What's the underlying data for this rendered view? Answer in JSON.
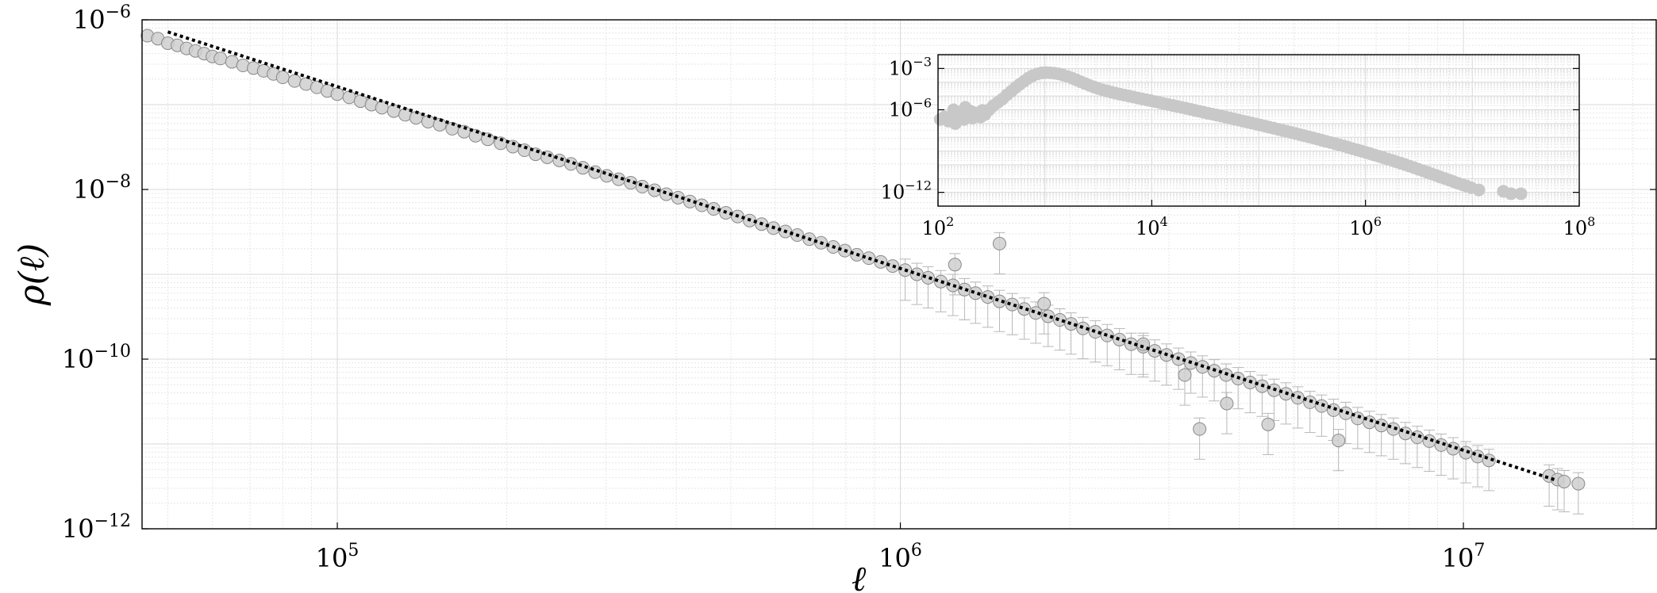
{
  "chart_data": [
    {
      "id": "main",
      "type": "scatter",
      "title": "",
      "xlabel": "ℓ",
      "ylabel": "ρ(ℓ)",
      "xscale": "log",
      "yscale": "log",
      "xlim": [
        45000,
        22000000
      ],
      "ylim": [
        1e-12,
        1e-06
      ],
      "grid": true,
      "x_ticks": [
        {
          "value": 100000.0,
          "base": "10",
          "exp": "5"
        },
        {
          "value": 1000000.0,
          "base": "10",
          "exp": "6"
        },
        {
          "value": 10000000.0,
          "base": "10",
          "exp": "7"
        }
      ],
      "y_ticks": [
        {
          "value": 1e-06,
          "base": "10",
          "exp": "−6"
        },
        {
          "value": 1e-08,
          "base": "10",
          "exp": "−8"
        },
        {
          "value": 1e-10,
          "base": "10",
          "exp": "−10"
        },
        {
          "value": 1e-12,
          "base": "10",
          "exp": "−12"
        }
      ],
      "series": [
        {
          "marker": "circle",
          "color": "#cfcfcf",
          "x": [
            46000,
            48000,
            50000,
            52000,
            54000,
            56000,
            58000,
            60000,
            62000,
            65000,
            68000,
            71000,
            74000,
            77000,
            80000,
            84000,
            88000,
            92000,
            96000,
            100000,
            105000,
            110000,
            115000,
            120000,
            126000,
            132000,
            138000,
            145000,
            152000,
            160000,
            168000,
            176000,
            185000,
            195000,
            205000,
            215000,
            225000,
            236000,
            248000,
            260000,
            273000,
            287000,
            301000,
            316000,
            332000,
            348000,
            366000,
            384000,
            403000,
            423000,
            444000,
            466000,
            490000,
            514000,
            540000,
            567000,
            595000,
            625000,
            656000,
            689000,
            723000,
            760000,
            797000,
            837000,
            879000,
            923000,
            969000,
            1020000,
            1070000,
            1120000,
            1180000,
            1240000,
            1300000,
            1360000,
            1430000,
            1500000,
            1580000,
            1660000,
            1740000,
            1830000,
            1920000,
            2010000,
            2110000,
            2220000,
            2330000,
            2450000,
            2570000,
            2700000,
            2830000,
            2970000,
            3120000,
            3280000,
            3440000,
            3610000,
            3790000,
            3980000,
            4180000,
            4390000,
            4610000,
            4840000,
            5080000,
            5340000,
            5600000,
            5880000,
            6180000,
            6490000,
            6810000,
            7150000,
            7510000,
            7890000,
            8280000,
            8700000,
            9130000,
            9590000,
            10100000,
            10600000,
            11100000,
            14200000,
            14700000,
            15100000,
            16000000,
            6000000,
            4500000,
            3800000,
            3200000,
            2700000,
            1800000,
            1500000,
            1250000,
            3400000
          ],
          "y": [
            6.5e-07,
            6e-07,
            5.3e-07,
            5e-07,
            4.6e-07,
            4.3e-07,
            4e-07,
            3.7e-07,
            3.5e-07,
            3.2e-07,
            2.9e-07,
            2.7e-07,
            2.5e-07,
            2.3e-07,
            2.1e-07,
            1.9e-07,
            1.75e-07,
            1.6e-07,
            1.45e-07,
            1.33e-07,
            1.22e-07,
            1.1e-07,
            1e-07,
            9.2e-08,
            8.4e-08,
            7.6e-08,
            7e-08,
            6.3e-08,
            5.8e-08,
            5.2e-08,
            4.8e-08,
            4.3e-08,
            3.9e-08,
            3.5e-08,
            3.2e-08,
            2.9e-08,
            2.6e-08,
            2.4e-08,
            2.2e-08,
            2e-08,
            1.8e-08,
            1.6e-08,
            1.45e-08,
            1.32e-08,
            1.2e-08,
            1.08e-08,
            9.8e-09,
            8.8e-09,
            8e-09,
            7.2e-09,
            6.5e-09,
            5.9e-09,
            5.3e-09,
            4.8e-09,
            4.3e-09,
            3.9e-09,
            3.5e-09,
            3.2e-09,
            2.9e-09,
            2.6e-09,
            2.35e-09,
            2.1e-09,
            1.9e-09,
            1.7e-09,
            1.55e-09,
            1.4e-09,
            1.25e-09,
            1.12e-09,
            1e-09,
            9.1e-10,
            8.2e-10,
            7.4e-10,
            6.6e-10,
            6e-10,
            5.4e-10,
            4.8e-10,
            4.4e-10,
            3.9e-10,
            3.5e-10,
            3.2e-10,
            2.9e-10,
            2.6e-10,
            2.3e-10,
            2.1e-10,
            1.9e-10,
            1.7e-10,
            1.5e-10,
            1.4e-10,
            1.25e-10,
            1.12e-10,
            1e-10,
            9e-11,
            8.1e-11,
            7.3e-11,
            6.5e-11,
            5.9e-11,
            5.3e-11,
            4.8e-11,
            4.3e-11,
            3.9e-11,
            3.5e-11,
            3.1e-11,
            2.8e-11,
            2.5e-11,
            2.3e-11,
            2e-11,
            1.8e-11,
            1.65e-11,
            1.5e-11,
            1.33e-11,
            1.2e-11,
            1.08e-11,
            9.7e-12,
            8.8e-12,
            7.9e-12,
            7.1e-12,
            6.4e-12,
            4.2e-12,
            3.8e-12,
            3.6e-12,
            3.4e-12,
            1.1e-11,
            1.7e-11,
            3e-11,
            6.5e-11,
            1.5e-10,
            4.5e-10,
            2.3e-09,
            1.3e-09,
            1.5e-11
          ],
          "y_err_rel": 0.35
        },
        {
          "type": "line",
          "style": "dotted",
          "color": "#000000",
          "x": [
            50000,
            14500000
          ],
          "y": [
            7.2e-07,
            3.8e-12
          ]
        }
      ]
    },
    {
      "id": "inset",
      "type": "scatter",
      "title": "",
      "xlabel": "",
      "ylabel": "",
      "xscale": "log",
      "yscale": "log",
      "xlim": [
        100,
        100000000
      ],
      "ylim": [
        1e-13,
        0.01
      ],
      "grid": true,
      "x_ticks": [
        {
          "value": 100.0,
          "base": "10",
          "exp": "2"
        },
        {
          "value": 10000.0,
          "base": "10",
          "exp": "4"
        },
        {
          "value": 1000000.0,
          "base": "10",
          "exp": "6"
        },
        {
          "value": 100000000.0,
          "base": "10",
          "exp": "8"
        }
      ],
      "y_ticks": [
        {
          "value": 0.001,
          "base": "10",
          "exp": "−3"
        },
        {
          "value": 1e-06,
          "base": "10",
          "exp": "−6"
        },
        {
          "value": 1e-12,
          "base": "10",
          "exp": "−12"
        }
      ],
      "series": [
        {
          "marker": "circle",
          "color": "#c8c8c8",
          "x": [
            105,
            115,
            125,
            135,
            145,
            160,
            175,
            190,
            210,
            230,
            250,
            275,
            300,
            330,
            365,
            400,
            440,
            485,
            530,
            580,
            640,
            700,
            770,
            850,
            930,
            1020,
            1120,
            1230,
            1350,
            1480,
            1630,
            1790,
            1970,
            2160,
            2380,
            2610,
            2870,
            3150,
            3470,
            3810,
            4190,
            4600,
            5060,
            5560,
            6110,
            6720,
            7380,
            8110,
            8920,
            9800,
            10800,
            11900,
            13000,
            14300,
            15800,
            17300,
            19000,
            20900,
            23000,
            25300,
            27800,
            30500,
            33500,
            36900,
            40500,
            44500,
            49000,
            53800,
            59100,
            65000,
            71400,
            78500,
            86300,
            94800,
            104000,
            115000,
            126000,
            138000,
            152000,
            167000,
            184000,
            202000,
            222000,
            244000,
            268000,
            295000,
            324000,
            356000,
            391000,
            430000,
            473000,
            520000,
            571000,
            628000,
            690000,
            758000,
            833000,
            916000,
            1010000,
            1110000,
            1220000,
            1340000,
            1470000,
            1620000,
            1780000,
            1950000,
            2150000,
            2360000,
            2590000,
            2850000,
            3130000,
            3440000,
            3780000,
            4160000,
            4570000,
            5020000,
            5520000,
            6060000,
            6660000,
            7320000,
            8050000,
            8840000,
            9720000,
            11500000,
            19500000,
            23000000,
            28500000,
            140,
            160,
            200,
            180,
            220,
            260
          ],
          "y": [
            2e-07,
            3e-07,
            1.5e-07,
            2.5e-07,
            1e-07,
            3.5e-07,
            2e-07,
            4e-07,
            2.5e-07,
            5e-07,
            3e-07,
            4.5e-07,
            1e-06,
            2e-06,
            3.5e-06,
            6e-06,
            1.2e-05,
            2.2e-05,
            4e-05,
            7e-05,
            0.00012,
            0.0002,
            0.0003,
            0.0004,
            0.00047,
            0.0005,
            0.00048,
            0.00045,
            0.0004,
            0.00033,
            0.00026,
            0.0002,
            0.00015,
            0.00011,
            8e-05,
            6e-05,
            4.5e-05,
            3.5e-05,
            2.8e-05,
            2.3e-05,
            1.9e-05,
            1.6e-05,
            1.35e-05,
            1.15e-05,
            1e-05,
            8.5e-06,
            7.2e-06,
            6.2e-06,
            5.3e-06,
            4.6e-06,
            3.9e-06,
            3.3e-06,
            2.8e-06,
            2.4e-06,
            2.05e-06,
            1.75e-06,
            1.5e-06,
            1.27e-06,
            1.08e-06,
            9.2e-07,
            7.8e-07,
            6.6e-07,
            5.6e-07,
            4.8e-07,
            4.1e-07,
            3.5e-07,
            3e-07,
            2.5e-07,
            2.1e-07,
            1.8e-07,
            1.5e-07,
            1.28e-07,
            1.08e-07,
            9.1e-08,
            7.7e-08,
            6.5e-08,
            5.4e-08,
            4.6e-08,
            3.8e-08,
            3.2e-08,
            2.7e-08,
            2.25e-08,
            1.88e-08,
            1.56e-08,
            1.3e-08,
            1.08e-08,
            9e-09,
            7.4e-09,
            6.1e-09,
            5e-09,
            4.1e-09,
            3.4e-09,
            2.8e-09,
            2.3e-09,
            1.85e-09,
            1.5e-09,
            1.22e-09,
            9.9e-10,
            8e-10,
            6.4e-10,
            5.1e-10,
            4.1e-10,
            3.3e-10,
            2.6e-10,
            2.1e-10,
            1.65e-10,
            1.3e-10,
            1.02e-10,
            8e-11,
            6.2e-11,
            4.8e-11,
            3.7e-11,
            2.9e-11,
            2.2e-11,
            1.7e-11,
            1.3e-11,
            1e-11,
            7.8e-12,
            6e-12,
            4.6e-12,
            3.6e-12,
            2.8e-12,
            2.2e-12,
            1.5e-12,
            1.2e-12,
            8e-13,
            8e-13,
            1e-06,
            5e-07,
            8e-07,
            1.5e-06,
            6e-07,
            9e-07
          ]
        }
      ]
    }
  ]
}
